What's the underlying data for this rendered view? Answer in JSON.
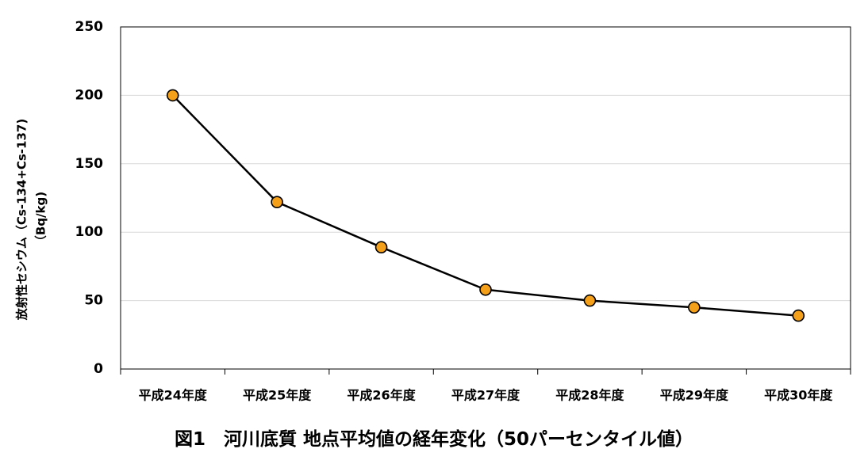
{
  "chart_data": {
    "type": "line",
    "categories": [
      "平成24年度",
      "平成25年度",
      "平成26年度",
      "平成27年度",
      "平成28年度",
      "平成29年度",
      "平成30年度"
    ],
    "series": [
      {
        "values": [
          200,
          122,
          89,
          58,
          50,
          45,
          39
        ]
      }
    ],
    "ylabel_line1": "放射性セシウム（Cs-134+Cs-137)",
    "ylabel_line2": "（Bq/kg)",
    "ylim": [
      0,
      250
    ],
    "yticks": [
      "0",
      "50",
      "100",
      "150",
      "200",
      "250"
    ],
    "grid": true,
    "legend": "none",
    "colors": {
      "line": "#000000",
      "marker_fill": "#f5a01a",
      "marker_stroke": "#000000",
      "grid": "#d9d9d9",
      "axis": "#000000"
    }
  },
  "caption": "図1　河川底質 地点平均値の経年変化（50パーセンタイル値）"
}
